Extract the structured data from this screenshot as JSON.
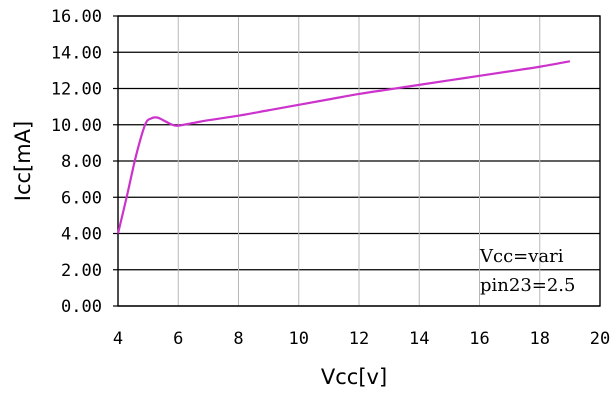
{
  "chart_data": {
    "type": "line",
    "xlabel": "Vcc[v]",
    "ylabel": "Icc[mA]",
    "xlim": [
      4,
      20
    ],
    "ylim": [
      0,
      16
    ],
    "x_ticks": [
      "4",
      "6",
      "8",
      "10",
      "12",
      "14",
      "16",
      "18",
      "20"
    ],
    "y_ticks": [
      "0.00",
      "2.00",
      "4.00",
      "6.00",
      "8.00",
      "10.00",
      "12.00",
      "14.00",
      "16.00"
    ],
    "grid": true,
    "annotations": [
      "Vcc=vari",
      "pin23=2.5"
    ],
    "series": [
      {
        "color": "#cc33cc",
        "x": [
          4.0,
          4.3,
          4.6,
          4.9,
          5.1,
          5.3,
          5.5,
          5.8,
          6.0,
          6.5,
          7.0,
          8.0,
          9.0,
          10.0,
          11.0,
          12.0,
          13.0,
          14.0,
          15.0,
          16.0,
          17.0,
          18.0,
          19.0
        ],
        "y": [
          4.0,
          6.1,
          8.3,
          10.0,
          10.35,
          10.4,
          10.25,
          10.0,
          9.95,
          10.1,
          10.25,
          10.5,
          10.8,
          11.1,
          11.4,
          11.7,
          11.95,
          12.2,
          12.45,
          12.7,
          12.95,
          13.2,
          13.5
        ]
      }
    ]
  }
}
